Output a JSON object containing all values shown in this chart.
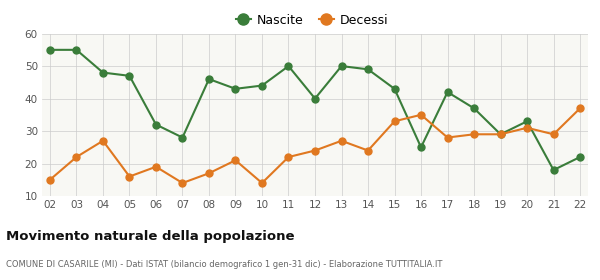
{
  "years": [
    "02",
    "03",
    "04",
    "05",
    "06",
    "07",
    "08",
    "09",
    "10",
    "11",
    "12",
    "13",
    "14",
    "15",
    "16",
    "17",
    "18",
    "19",
    "20",
    "21",
    "22"
  ],
  "nascite": [
    55,
    55,
    48,
    47,
    32,
    28,
    46,
    43,
    44,
    50,
    40,
    50,
    49,
    43,
    25,
    42,
    37,
    29,
    33,
    18,
    22
  ],
  "decessi": [
    15,
    22,
    27,
    16,
    19,
    14,
    17,
    21,
    14,
    22,
    24,
    27,
    24,
    33,
    35,
    28,
    29,
    29,
    31,
    29,
    37
  ],
  "nascite_color": "#3a7d3a",
  "decessi_color": "#e07820",
  "background_color": "#ffffff",
  "plot_bg_color": "#f8f8f4",
  "ylim": [
    10,
    60
  ],
  "yticks": [
    10,
    20,
    30,
    40,
    50,
    60
  ],
  "title": "Movimento naturale della popolazione",
  "subtitle": "COMUNE DI CASARILE (MI) - Dati ISTAT (bilancio demografico 1 gen-31 dic) - Elaborazione TUTTITALIA.IT",
  "legend_nascite": "Nascite",
  "legend_decessi": "Decessi",
  "marker_size": 5,
  "line_width": 1.5
}
